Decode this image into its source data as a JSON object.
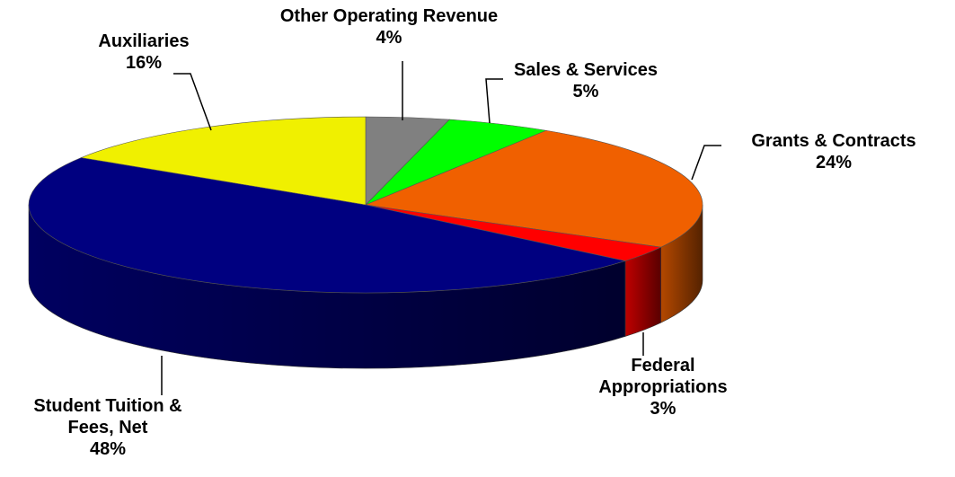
{
  "chart_data": {
    "type": "pie",
    "categories": [
      "Other Operating Revenue",
      "Sales & Services",
      "Grants & Contracts",
      "Federal Appropriations",
      "Student Tuition & Fees, Net",
      "Auxiliaries"
    ],
    "values": [
      4,
      5,
      24,
      3,
      48,
      16
    ],
    "value_labels": [
      "4%",
      "5%",
      "24%",
      "3%",
      "48%",
      "16%"
    ],
    "colors": [
      "#808080",
      "#00ff00",
      "#f06000",
      "#ff0000",
      "#000080",
      "#f0f000"
    ]
  }
}
